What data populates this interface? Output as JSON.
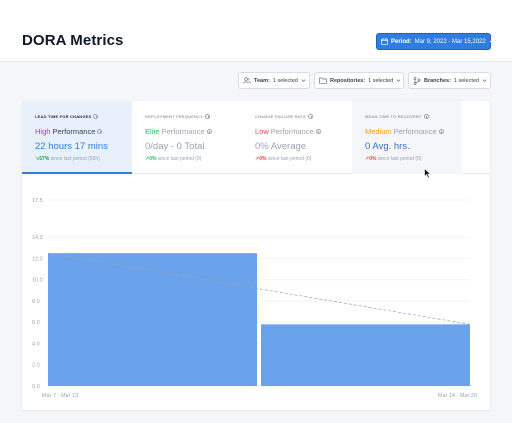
{
  "header": {
    "title": "DORA Metrics",
    "period_label": "Period:",
    "period_value": "Mar 9, 2022 - Mar 15,2022"
  },
  "filters": [
    {
      "label": "Team:",
      "value": "1 selected",
      "icon": "users-icon"
    },
    {
      "label": "Repositories:",
      "value": "1 selected",
      "icon": "folder-icon"
    },
    {
      "label": "Branches:",
      "value": "1 selected",
      "icon": "branch-icon"
    }
  ],
  "metrics": [
    {
      "label": "LEAD TIME FOR CHANGES",
      "level": "High",
      "level_color": "#c026d3",
      "perf_word": "Performance",
      "value": "22 hours 17 mins",
      "change": "↘57%",
      "change_color": "#16a34a",
      "since": "since last period (56h)"
    },
    {
      "label": "DEPLOYMENT FREQUENCY",
      "level": "Elite",
      "level_color": "#22c55e",
      "perf_word": "Performance",
      "value": "0/day - 0 Total",
      "change": "↗0%",
      "change_color": "#22c55e",
      "since": "since last period (0)"
    },
    {
      "label": "CHANGE FAILURE RATE",
      "level": "Low",
      "level_color": "#ef4444",
      "perf_word": "Performance",
      "value": "0% Average",
      "change": "↗0%",
      "change_color": "#ef4444",
      "since": "since last period (0)"
    },
    {
      "label": "MEAN TIME TO RECOVERY",
      "level": "Medium",
      "level_color": "#f59e0b",
      "perf_word": "Performance",
      "value": "0 Avg. hrs.",
      "change": "↗0%",
      "change_color": "#ef4444",
      "since": "since last period (0)"
    }
  ],
  "chart_data": {
    "type": "bar",
    "categories": [
      "Mar 7 - Mar 13",
      "Mar 14 - Mar 20"
    ],
    "values": [
      12.5,
      5.8
    ],
    "trend": [
      12.5,
      5.8
    ],
    "ylim": [
      0,
      17.5
    ],
    "yticks": [
      "0.0",
      "2.0",
      "4.0",
      "6.0",
      "8.0",
      "10.0",
      "12.0",
      "14.0",
      "17.5"
    ],
    "ytick_values": [
      0,
      2,
      4,
      6,
      8,
      10,
      12,
      14,
      17.5
    ],
    "bar_color": "#6aa3ec",
    "trend_color": "#9aa3b1",
    "grid": true
  }
}
